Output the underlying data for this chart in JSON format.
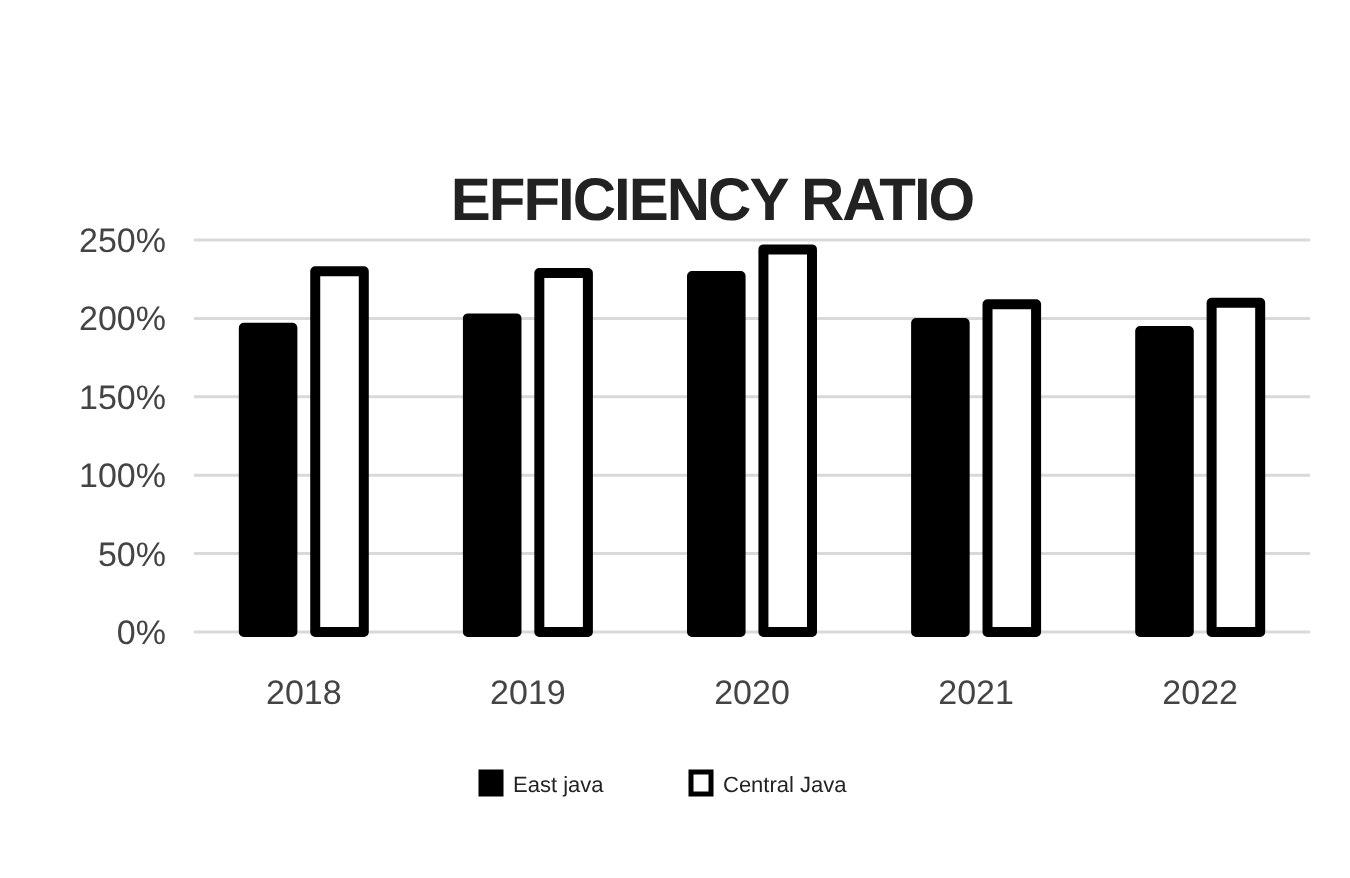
{
  "chart_data": {
    "type": "bar",
    "title": "EFFICIENCY RATIO",
    "categories": [
      "2018",
      "2019",
      "2020",
      "2021",
      "2022"
    ],
    "series": [
      {
        "name": "East java",
        "color": "#000000",
        "values": [
          194,
          200,
          227,
          197,
          192
        ]
      },
      {
        "name": "Central Java",
        "color": "#ffffff",
        "values": [
          230,
          229,
          244,
          209,
          210
        ]
      }
    ],
    "ylim": [
      0,
      250
    ],
    "yticks": [
      {
        "value": 0,
        "label": "0%"
      },
      {
        "value": 50,
        "label": "50%"
      },
      {
        "value": 100,
        "label": "100%"
      },
      {
        "value": 150,
        "label": "150%"
      },
      {
        "value": 200,
        "label": "200%"
      },
      {
        "value": 250,
        "label": "250%"
      }
    ],
    "grid": "y",
    "legend": "bottom"
  }
}
